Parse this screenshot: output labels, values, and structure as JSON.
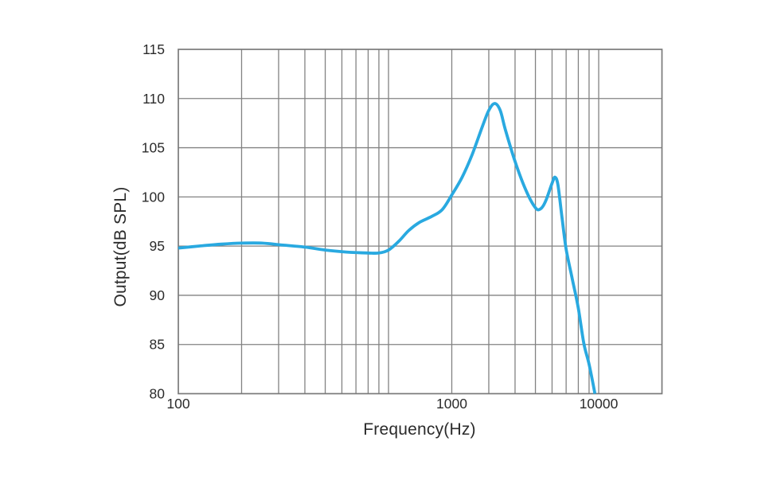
{
  "chart_data": {
    "type": "line",
    "title": "",
    "xlabel": "Frequency(Hz)",
    "ylabel": "Output(dB SPL)",
    "x_scale": "log",
    "x_range_hz": [
      100,
      20000
    ],
    "y_range_db": [
      80,
      115
    ],
    "y_ticks": [
      115,
      110,
      105,
      100,
      95,
      90,
      85,
      80
    ],
    "x_tick_labels": [
      {
        "label": "100",
        "anchor_hz": 100
      },
      {
        "label": "1000",
        "anchor_hz": 2000
      },
      {
        "label": "10000",
        "anchor_hz": 10000
      }
    ],
    "minor_x_gridlines_hz": [
      200,
      300,
      400,
      500,
      600,
      700,
      800,
      900,
      1000,
      2000,
      3000,
      4000,
      5000,
      6000,
      7000,
      8000,
      9000,
      10000
    ],
    "grid": "on",
    "legend": "none",
    "colors": {
      "line": "#29a9e0",
      "grid": "#828282",
      "border": "#7a7a7a",
      "text": "#2b2b2b",
      "background": "#ffffff"
    },
    "series": [
      {
        "name": "output-spl",
        "points": [
          [
            100,
            94.8
          ],
          [
            125,
            95.0
          ],
          [
            160,
            95.2
          ],
          [
            200,
            95.3
          ],
          [
            250,
            95.3
          ],
          [
            315,
            95.1
          ],
          [
            400,
            94.9
          ],
          [
            500,
            94.6
          ],
          [
            630,
            94.4
          ],
          [
            800,
            94.3
          ],
          [
            900,
            94.3
          ],
          [
            1000,
            94.6
          ],
          [
            1120,
            95.5
          ],
          [
            1250,
            96.6
          ],
          [
            1400,
            97.4
          ],
          [
            1600,
            98.0
          ],
          [
            1800,
            98.7
          ],
          [
            2000,
            100.2
          ],
          [
            2240,
            102.0
          ],
          [
            2500,
            104.3
          ],
          [
            2800,
            107.2
          ],
          [
            3000,
            108.8
          ],
          [
            3200,
            109.5
          ],
          [
            3400,
            108.8
          ],
          [
            3600,
            106.8
          ],
          [
            4000,
            103.6
          ],
          [
            4500,
            100.7
          ],
          [
            5000,
            98.9
          ],
          [
            5300,
            98.8
          ],
          [
            5600,
            99.6
          ],
          [
            6000,
            101.4
          ],
          [
            6200,
            102.0
          ],
          [
            6400,
            101.2
          ],
          [
            6700,
            97.8
          ],
          [
            7000,
            94.7
          ],
          [
            7500,
            91.6
          ],
          [
            8000,
            88.7
          ],
          [
            8500,
            85.1
          ],
          [
            9000,
            83.0
          ],
          [
            9600,
            80.0
          ]
        ]
      }
    ]
  }
}
